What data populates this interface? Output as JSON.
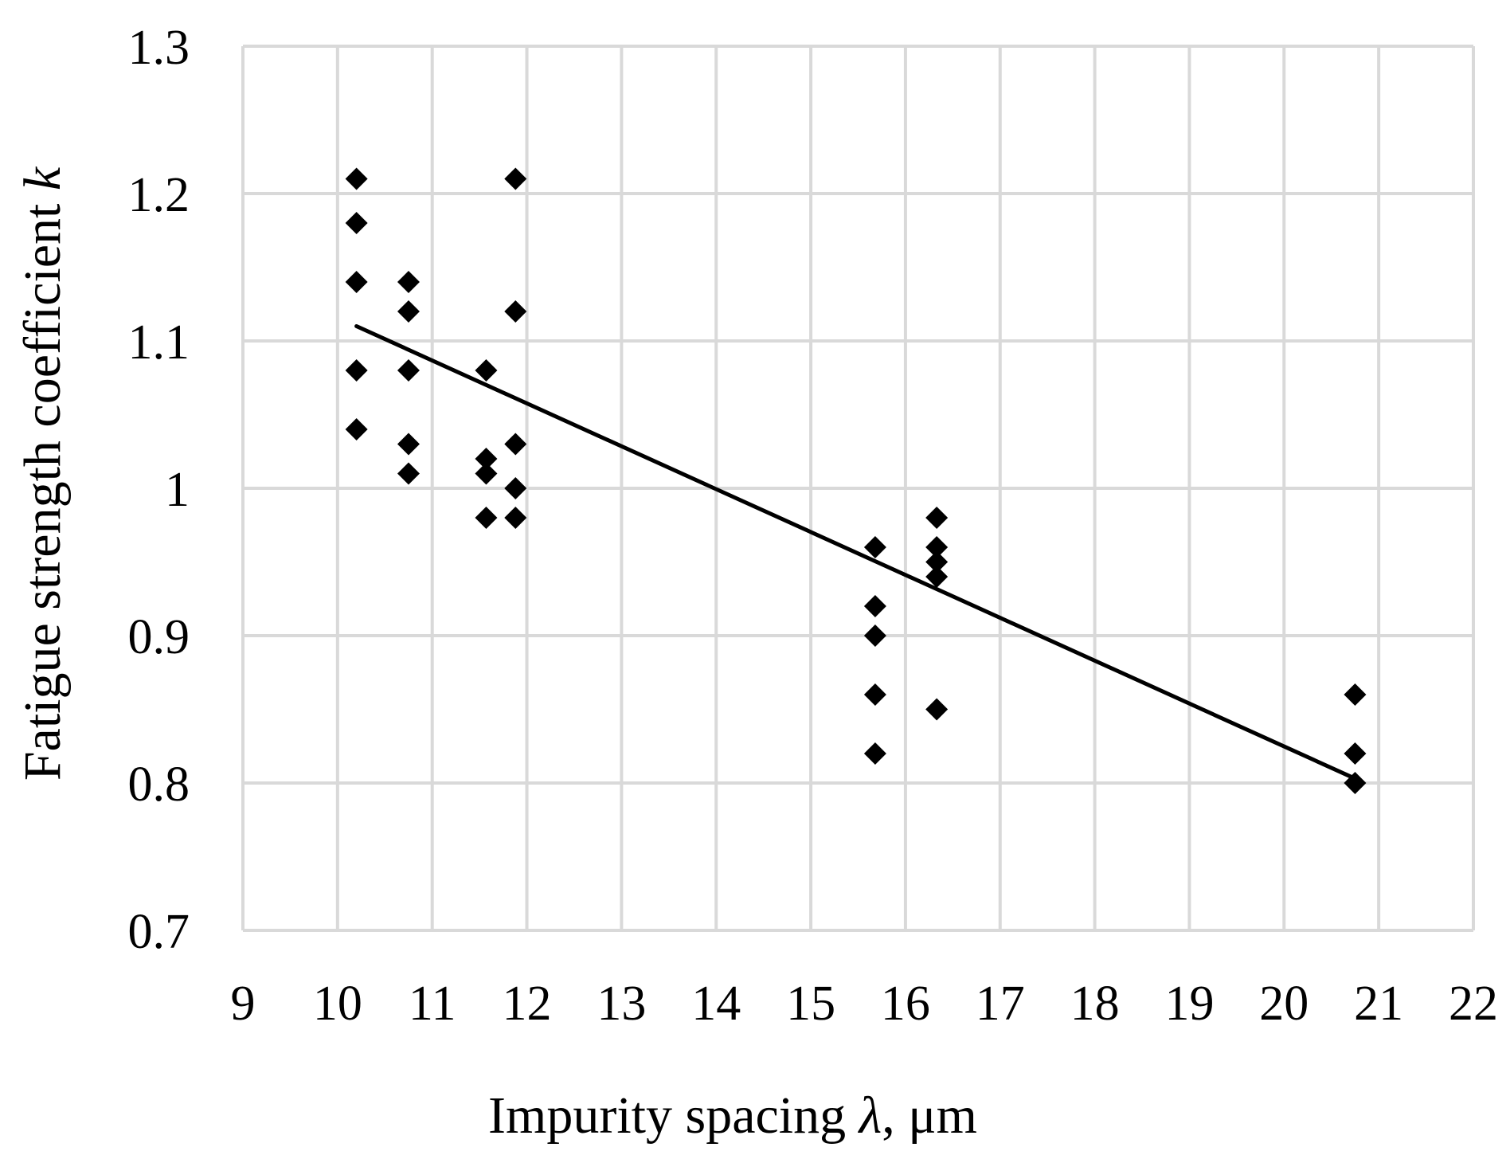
{
  "chart_data": {
    "type": "scatter",
    "title": "",
    "xlabel": {
      "prefix": "Impurity spacing ",
      "symbol": "λ",
      "suffix": ", μm"
    },
    "ylabel": {
      "prefix": "Fatigue strength coefficient ",
      "symbol": "k"
    },
    "xlim": [
      9,
      22
    ],
    "ylim": [
      0.7,
      1.3
    ],
    "x_ticks": [
      "9",
      "10",
      "11",
      "12",
      "13",
      "14",
      "15",
      "16",
      "17",
      "18",
      "19",
      "20",
      "21",
      "22"
    ],
    "y_ticks": [
      "0.7",
      "0.8",
      "0.9",
      "1",
      "1.1",
      "1.2",
      "1.3"
    ],
    "grid": true,
    "marker": "diamond",
    "marker_color": "#000000",
    "points": [
      {
        "x": 10.2,
        "y": 1.21
      },
      {
        "x": 10.2,
        "y": 1.18
      },
      {
        "x": 10.2,
        "y": 1.14
      },
      {
        "x": 10.2,
        "y": 1.08
      },
      {
        "x": 10.2,
        "y": 1.04
      },
      {
        "x": 10.75,
        "y": 1.14
      },
      {
        "x": 10.75,
        "y": 1.12
      },
      {
        "x": 10.75,
        "y": 1.08
      },
      {
        "x": 10.75,
        "y": 1.03
      },
      {
        "x": 10.75,
        "y": 1.01
      },
      {
        "x": 11.57,
        "y": 1.08
      },
      {
        "x": 11.57,
        "y": 1.02
      },
      {
        "x": 11.57,
        "y": 1.01
      },
      {
        "x": 11.57,
        "y": 0.98
      },
      {
        "x": 11.88,
        "y": 1.21
      },
      {
        "x": 11.88,
        "y": 1.12
      },
      {
        "x": 11.88,
        "y": 1.03
      },
      {
        "x": 11.88,
        "y": 1.0
      },
      {
        "x": 11.88,
        "y": 0.98
      },
      {
        "x": 15.68,
        "y": 0.96
      },
      {
        "x": 15.68,
        "y": 0.92
      },
      {
        "x": 15.68,
        "y": 0.9
      },
      {
        "x": 15.68,
        "y": 0.86
      },
      {
        "x": 15.68,
        "y": 0.82
      },
      {
        "x": 16.33,
        "y": 0.98
      },
      {
        "x": 16.33,
        "y": 0.96
      },
      {
        "x": 16.33,
        "y": 0.95
      },
      {
        "x": 16.33,
        "y": 0.94
      },
      {
        "x": 16.33,
        "y": 0.85
      },
      {
        "x": 20.75,
        "y": 0.86
      },
      {
        "x": 20.75,
        "y": 0.82
      },
      {
        "x": 20.75,
        "y": 0.8
      }
    ],
    "trendline": {
      "type": "linear",
      "color": "#000000",
      "from": {
        "x": 10.2,
        "y": 1.11
      },
      "to": {
        "x": 20.75,
        "y": 0.803
      }
    }
  }
}
